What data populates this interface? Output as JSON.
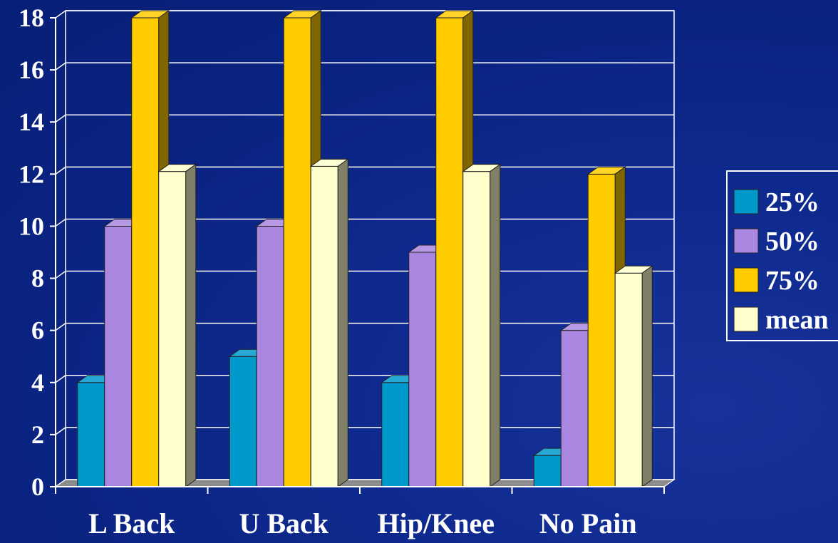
{
  "chart_data": {
    "type": "bar",
    "categories": [
      "L Back",
      "U Back",
      "Hip/Knee",
      "No Pain"
    ],
    "series": [
      {
        "name": "25%",
        "color": "#0099cc",
        "values": [
          4,
          5,
          4,
          1.2
        ]
      },
      {
        "name": "50%",
        "color": "#a987e0",
        "values": [
          10,
          10,
          9,
          6
        ]
      },
      {
        "name": "75%",
        "color": "#ffcc00",
        "values": [
          18,
          18,
          18,
          12
        ]
      },
      {
        "name": "mean",
        "color": "#ffffcc",
        "values": [
          12.1,
          12.3,
          12.1,
          8.2
        ]
      }
    ],
    "y_ticks": [
      "0",
      "2",
      "4",
      "6",
      "8",
      "10",
      "12",
      "14",
      "16",
      "18"
    ],
    "ylim": [
      0,
      18
    ],
    "grid": true,
    "legend_position": "right",
    "title": "",
    "xlabel": "",
    "ylabel": ""
  }
}
